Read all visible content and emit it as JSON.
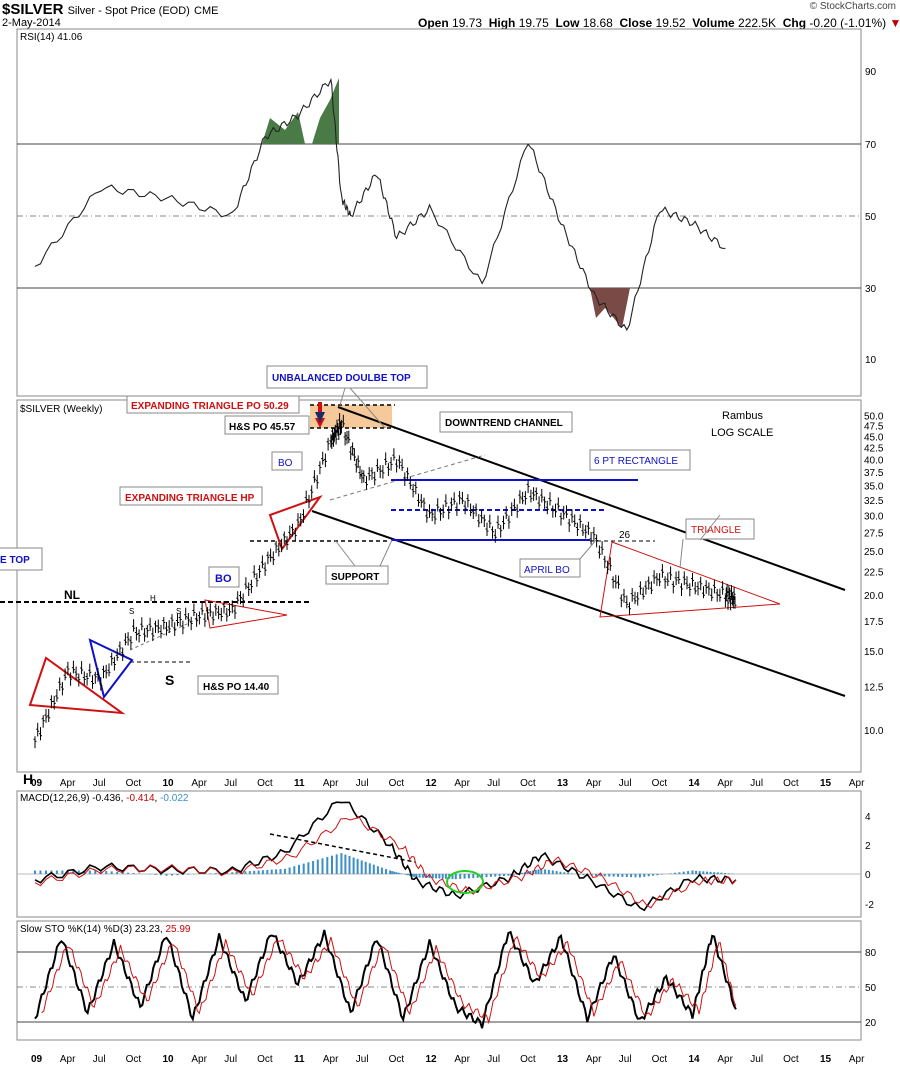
{
  "header": {
    "symbol": "$SILVER",
    "description": "Silver - Spot Price (EOD)",
    "exchange": "CME",
    "date": "2-May-2014",
    "open_label": "Open",
    "open": "19.73",
    "high_label": "High",
    "high": "19.75",
    "low_label": "Low",
    "low": "18.68",
    "close_label": "Close",
    "close": "19.52",
    "volume_label": "Volume",
    "volume": "222.5K",
    "chg_label": "Chg",
    "chg": "-0.20 (-1.01%)",
    "down_symbol": "▼",
    "copyright": "© StockCharts.com"
  },
  "chart_data": [
    {
      "type": "line",
      "panel": "RSI",
      "title": "RSI(14)",
      "last_value": "41.06",
      "ylim": [
        0,
        100
      ],
      "ticks": [
        10,
        30,
        50,
        70,
        90
      ],
      "reference_lines": [
        30,
        70
      ],
      "x": [
        2009.0,
        2009.5,
        2010.0,
        2010.5,
        2010.75,
        2011.0,
        2011.25,
        2011.33,
        2011.4,
        2011.6,
        2011.75,
        2012.0,
        2012.4,
        2012.75,
        2013.0,
        2013.25,
        2013.5,
        2013.75,
        2014.0,
        2014.25
      ],
      "values": [
        36,
        58,
        55,
        50,
        72,
        78,
        88,
        55,
        50,
        62,
        44,
        52,
        31,
        71,
        48,
        28,
        18,
        52,
        48,
        41
      ],
      "annotations": []
    },
    {
      "type": "candlestick",
      "panel": "price",
      "title": "$SILVER (Weekly)",
      "scale": "log",
      "ylim": [
        8.5,
        52
      ],
      "ticks": [
        "10.0",
        "12.5",
        "15.0",
        "17.5",
        "20.0",
        "22.5",
        "25.0",
        "27.5",
        "30.0",
        "32.5",
        "35.0",
        "37.5",
        "40.0",
        "42.5",
        "45.0",
        "47.5",
        "50.0"
      ],
      "x": [
        2009.0,
        2009.25,
        2009.5,
        2009.75,
        2010.0,
        2010.25,
        2010.5,
        2010.75,
        2011.0,
        2011.25,
        2011.33,
        2011.5,
        2011.75,
        2012.0,
        2012.25,
        2012.5,
        2012.75,
        2013.0,
        2013.25,
        2013.5,
        2013.75,
        2014.0,
        2014.25,
        2014.33
      ],
      "close": [
        9.5,
        13.5,
        13.0,
        16.5,
        17.0,
        18.0,
        18.5,
        23.5,
        28.5,
        44.0,
        48.0,
        36.0,
        40.0,
        30.0,
        32.5,
        27.5,
        34.0,
        30.5,
        27.0,
        19.0,
        22.0,
        21.0,
        20.0,
        19.52
      ],
      "x_tick_labels": [
        "09",
        "Apr",
        "Jul",
        "Oct",
        "10",
        "Apr",
        "Jul",
        "Oct",
        "11",
        "Apr",
        "Jul",
        "Oct",
        "12",
        "Apr",
        "Jul",
        "Oct",
        "13",
        "Apr",
        "Jul",
        "Oct",
        "14",
        "Apr",
        "Jul",
        "Oct",
        "15",
        "Apr"
      ],
      "annotations": {
        "unbalanced": "UNBALANCED DOULBE TOP",
        "exp_tri_po": "EXPANDING TRIANGLE PO 50.29",
        "hs_po_4557": "H&S PO 45.57",
        "exp_tri_hp": "EXPANDING TRIANGLE HP",
        "downtrend": "DOWNTREND CHANNEL",
        "rect": "6 PT RECTANGLE",
        "triangle": "TRIANGLE",
        "support": "SUPPORT",
        "april_bo": "APRIL BO",
        "bo1": "BO",
        "bo2": "BO",
        "hs_po_1440": "H&S PO 14.40",
        "nl": "NL",
        "h_small": "H",
        "s_left": "S",
        "s_right": "S",
        "s_big": "S",
        "h_big": "H",
        "twenty_six": "26",
        "double_top_partial": "E TOP",
        "rambus": "Rambus",
        "log_scale": "LOG SCALE"
      }
    },
    {
      "type": "line",
      "panel": "MACD",
      "title": "MACD(12,26,9)",
      "values_text": [
        "-0.436",
        "-0.414",
        "-0.022"
      ],
      "ylim": [
        -3,
        5.5
      ],
      "ticks": [
        "4",
        "2",
        "0",
        "-2"
      ],
      "series": [
        {
          "name": "MACD",
          "x": [
            2009.0,
            2009.5,
            2010.0,
            2010.5,
            2010.9,
            2011.33,
            2011.7,
            2011.9,
            2012.2,
            2012.6,
            2012.85,
            2013.2,
            2013.6,
            2014.0,
            2014.33
          ],
          "values": [
            -0.4,
            0.5,
            0.3,
            0.2,
            1.5,
            5.2,
            2.0,
            -0.5,
            -1.5,
            -0.3,
            1.3,
            -0.3,
            -2.4,
            -0.3,
            -0.4
          ]
        },
        {
          "name": "Signal",
          "x": [
            2009.0,
            2009.5,
            2010.0,
            2010.5,
            2010.95,
            2011.4,
            2011.8,
            2012.0,
            2012.3,
            2012.7,
            2012.95,
            2013.3,
            2013.65,
            2014.05,
            2014.33
          ],
          "values": [
            -0.6,
            0.3,
            0.4,
            0.1,
            1.2,
            4.0,
            1.8,
            -0.3,
            -1.2,
            -0.2,
            1.0,
            -0.2,
            -2.2,
            -0.5,
            -0.41
          ]
        }
      ]
    },
    {
      "type": "line",
      "panel": "STO",
      "title": "Slow STO %K(14) %D(3)",
      "values_text": [
        "23.23",
        "25.99"
      ],
      "ylim": [
        0,
        100
      ],
      "ticks": [
        "80",
        "50",
        "20"
      ],
      "reference_lines": [
        20,
        50,
        80
      ],
      "series": [
        {
          "name": "%K",
          "x": [
            2009.0,
            2009.2,
            2009.4,
            2009.6,
            2009.8,
            2010.0,
            2010.2,
            2010.4,
            2010.6,
            2010.8,
            2011.0,
            2011.2,
            2011.4,
            2011.6,
            2011.8,
            2012.0,
            2012.2,
            2012.4,
            2012.6,
            2012.8,
            2013.0,
            2013.2,
            2013.4,
            2013.6,
            2013.8,
            2014.0,
            2014.15,
            2014.33
          ],
          "values": [
            15,
            85,
            20,
            80,
            25,
            88,
            15,
            85,
            30,
            90,
            45,
            88,
            20,
            85,
            15,
            80,
            25,
            10,
            90,
            45,
            85,
            15,
            70,
            12,
            50,
            18,
            88,
            23
          ]
        },
        {
          "name": "%D",
          "x": [
            2009.05,
            2009.25,
            2009.45,
            2009.65,
            2009.85,
            2010.05,
            2010.25,
            2010.45,
            2010.65,
            2010.85,
            2011.05,
            2011.25,
            2011.45,
            2011.65,
            2011.85,
            2012.05,
            2012.25,
            2012.45,
            2012.65,
            2012.85,
            2013.05,
            2013.25,
            2013.45,
            2013.65,
            2013.85,
            2014.05,
            2014.2,
            2014.33
          ],
          "values": [
            20,
            80,
            25,
            75,
            30,
            82,
            20,
            80,
            35,
            85,
            50,
            82,
            25,
            80,
            20,
            75,
            28,
            15,
            85,
            50,
            80,
            20,
            65,
            16,
            48,
            22,
            82,
            26
          ]
        }
      ]
    }
  ],
  "colors": {
    "up_text": "#0000cc",
    "down_text": "#cc0000",
    "accent_fill": "#f5c08a",
    "rsi_green": "#4a7a46",
    "rsi_brown": "#7a4a46"
  }
}
